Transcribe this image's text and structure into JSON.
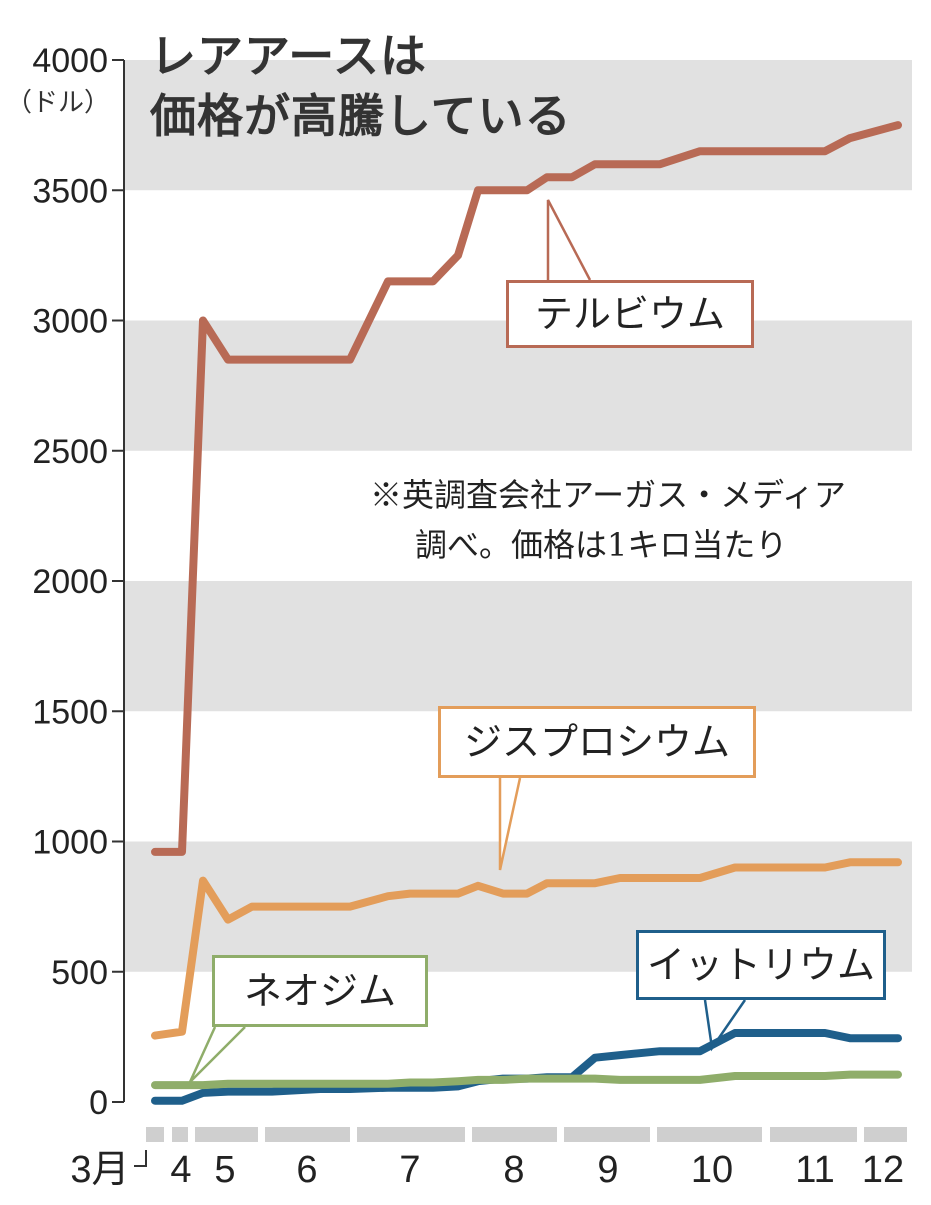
{
  "chart_data": {
    "type": "line",
    "title": [
      "レアアースは",
      "価格が高騰している"
    ],
    "ylabel": "（ドル）",
    "ylim": [
      0,
      4000
    ],
    "yticks": [
      0,
      500,
      1000,
      1500,
      2000,
      2500,
      3000,
      3500,
      4000
    ],
    "grid": "alternating-bands",
    "months": [
      "3月",
      "4",
      "5",
      "6",
      "7",
      "8",
      "9",
      "10",
      "11",
      "12"
    ],
    "x": [
      "3月",
      "4",
      "4",
      "4",
      "5",
      "5",
      "6",
      "6",
      "7",
      "7",
      "7",
      "7",
      "8",
      "8",
      "8",
      "8",
      "9",
      "9",
      "9",
      "10",
      "10",
      "10",
      "11",
      "11",
      "11",
      "12",
      "12"
    ],
    "note": [
      "※英調査会社アーガス・メディア",
      "調べ。価格は1キロ当たり"
    ],
    "series": [
      {
        "name": "テルビウム",
        "color": "#b86a55",
        "values": [
          960,
          960,
          3000,
          2850,
          2850,
          2850,
          2850,
          2850,
          2850,
          3150,
          3150,
          3150,
          3250,
          3500,
          3500,
          3500,
          3550,
          3550,
          3600,
          3600,
          3600,
          3650,
          3650,
          3650,
          3650,
          3700,
          3750
        ]
      },
      {
        "name": "ジスプロシウム",
        "color": "#e39d5a",
        "values": [
          255,
          270,
          850,
          700,
          750,
          750,
          750,
          750,
          750,
          790,
          800,
          800,
          800,
          830,
          800,
          800,
          840,
          840,
          840,
          860,
          860,
          860,
          900,
          900,
          900,
          920,
          920
        ]
      },
      {
        "name": "ネオジム",
        "color": "#8fad6a",
        "values": [
          65,
          65,
          65,
          70,
          70,
          70,
          70,
          70,
          70,
          70,
          75,
          75,
          80,
          85,
          85,
          90,
          90,
          90,
          90,
          85,
          85,
          85,
          100,
          100,
          100,
          105,
          105
        ]
      },
      {
        "name": "イットリウム",
        "color": "#1f5f8b",
        "values": [
          5,
          5,
          35,
          40,
          40,
          40,
          45,
          50,
          50,
          55,
          55,
          55,
          60,
          80,
          90,
          90,
          95,
          95,
          170,
          180,
          195,
          195,
          265,
          265,
          265,
          245,
          245
        ]
      }
    ]
  }
}
